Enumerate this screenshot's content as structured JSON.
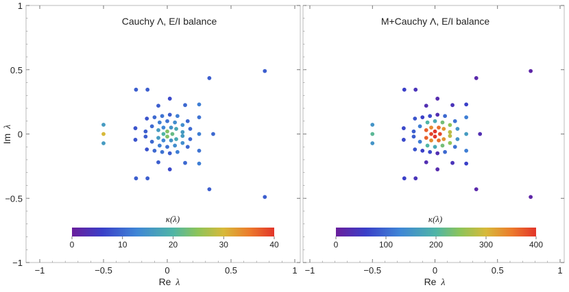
{
  "figure": {
    "y_axis_label": "Im",
    "x_axis_label": "Re",
    "lambda_symbol": "λ"
  },
  "chart_data": [
    {
      "type": "scatter",
      "title": "Cauchy Λ,  E/I balance",
      "xlabel": "Re λ",
      "ylabel": "Im λ",
      "xlim": [
        -1,
        1
      ],
      "ylim": [
        -1,
        1
      ],
      "x_ticks": [
        -1,
        -0.5,
        0,
        0.5,
        1
      ],
      "x_tick_labels": [
        "−1",
        "−0.5",
        "0",
        "0.5",
        "1"
      ],
      "y_ticks": [
        -1,
        -0.5,
        0,
        0.5,
        1
      ],
      "y_tick_labels": [
        "−1",
        "−0.5",
        "0",
        "0.5",
        "1"
      ],
      "colorbar": {
        "label": "κ(λ)",
        "min": 0,
        "max": 40,
        "ticks": [
          0,
          10,
          20,
          30,
          40
        ],
        "tick_labels": [
          "0",
          "10",
          "20",
          "30",
          "40"
        ]
      },
      "points": [
        {
          "x": -0.5,
          "y": 0,
          "k": 30
        },
        {
          "x": -0.5,
          "y": 0.072,
          "k": 16
        },
        {
          "x": -0.5,
          "y": -0.072,
          "k": 16
        },
        {
          "x": 0.765,
          "y": 0.49,
          "k": 9
        },
        {
          "x": 0.765,
          "y": -0.49,
          "k": 9
        },
        {
          "x": 0.33,
          "y": 0.435,
          "k": 9
        },
        {
          "x": 0.33,
          "y": -0.43,
          "k": 9
        },
        {
          "x": -0.245,
          "y": 0.345,
          "k": 9
        },
        {
          "x": -0.155,
          "y": 0.345,
          "k": 9
        },
        {
          "x": -0.245,
          "y": -0.345,
          "k": 9
        },
        {
          "x": -0.155,
          "y": -0.345,
          "k": 9
        },
        {
          "x": 0.02,
          "y": 0.275,
          "k": 7
        },
        {
          "x": 0.02,
          "y": -0.275,
          "k": 7
        },
        {
          "x": -0.07,
          "y": 0.22,
          "k": 9
        },
        {
          "x": -0.07,
          "y": -0.22,
          "k": 9
        },
        {
          "x": 0.14,
          "y": 0.225,
          "k": 10
        },
        {
          "x": 0.14,
          "y": -0.225,
          "k": 10
        },
        {
          "x": 0.25,
          "y": 0.23,
          "k": 12
        },
        {
          "x": 0.25,
          "y": -0.23,
          "k": 12
        },
        {
          "x": 0.36,
          "y": 0,
          "k": 10
        },
        {
          "x": 0.25,
          "y": 0.13,
          "k": 11
        },
        {
          "x": 0.25,
          "y": -0.13,
          "k": 11
        },
        {
          "x": 0.25,
          "y": 0,
          "k": 12
        },
        {
          "x": -0.25,
          "y": 0.045,
          "k": 8
        },
        {
          "x": -0.25,
          "y": -0.045,
          "k": 8
        },
        {
          "x": -0.16,
          "y": 0.12,
          "k": 8
        },
        {
          "x": -0.16,
          "y": -0.12,
          "k": 8
        },
        {
          "x": -0.17,
          "y": 0.02,
          "k": 9
        },
        {
          "x": -0.17,
          "y": -0.02,
          "k": 9
        },
        {
          "x": -0.1,
          "y": 0.13,
          "k": 10
        },
        {
          "x": -0.1,
          "y": -0.13,
          "k": 10
        },
        {
          "x": -0.04,
          "y": 0.14,
          "k": 11
        },
        {
          "x": -0.04,
          "y": -0.14,
          "k": 11
        },
        {
          "x": 0.02,
          "y": 0.15,
          "k": 9
        },
        {
          "x": 0.02,
          "y": -0.15,
          "k": 9
        },
        {
          "x": 0.08,
          "y": 0.14,
          "k": 12
        },
        {
          "x": 0.08,
          "y": -0.14,
          "k": 12
        },
        {
          "x": 0.16,
          "y": 0.1,
          "k": 10
        },
        {
          "x": 0.16,
          "y": -0.1,
          "k": 10
        },
        {
          "x": 0.18,
          "y": 0.04,
          "k": 10
        },
        {
          "x": 0.18,
          "y": -0.04,
          "k": 10
        },
        {
          "x": -0.12,
          "y": 0.06,
          "k": 10
        },
        {
          "x": -0.12,
          "y": -0.06,
          "k": 10
        },
        {
          "x": -0.06,
          "y": 0.09,
          "k": 12
        },
        {
          "x": -0.06,
          "y": -0.09,
          "k": 12
        },
        {
          "x": 0.0,
          "y": 0.1,
          "k": 11
        },
        {
          "x": 0.0,
          "y": -0.1,
          "k": 11
        },
        {
          "x": 0.06,
          "y": 0.09,
          "k": 14
        },
        {
          "x": 0.06,
          "y": -0.09,
          "k": 14
        },
        {
          "x": 0.12,
          "y": 0.07,
          "k": 14
        },
        {
          "x": 0.12,
          "y": -0.07,
          "k": 14
        },
        {
          "x": 0.12,
          "y": 0.015,
          "k": 16
        },
        {
          "x": 0.12,
          "y": -0.015,
          "k": 16
        },
        {
          "x": -0.07,
          "y": 0.03,
          "k": 16
        },
        {
          "x": -0.07,
          "y": -0.03,
          "k": 16
        },
        {
          "x": -0.03,
          "y": 0.05,
          "k": 13
        },
        {
          "x": -0.03,
          "y": -0.05,
          "k": 13
        },
        {
          "x": 0.03,
          "y": 0.05,
          "k": 15
        },
        {
          "x": 0.03,
          "y": -0.05,
          "k": 15
        },
        {
          "x": 0.07,
          "y": 0.04,
          "k": 18
        },
        {
          "x": 0.07,
          "y": -0.04,
          "k": 18
        },
        {
          "x": -0.03,
          "y": 0.0,
          "k": 20
        },
        {
          "x": 0.0,
          "y": 0.02,
          "k": 24
        },
        {
          "x": 0.0,
          "y": -0.02,
          "k": 24
        },
        {
          "x": 0.04,
          "y": 0.0,
          "k": 22
        }
      ]
    },
    {
      "type": "scatter",
      "title": "M+Cauchy Λ,  E/I balance",
      "xlabel": "Re λ",
      "ylabel": "Im λ",
      "xlim": [
        -1,
        1
      ],
      "ylim": [
        -1,
        1
      ],
      "x_ticks": [
        -1,
        -0.5,
        0,
        0.5,
        1
      ],
      "x_tick_labels": [
        "−1",
        "−0.5",
        "0",
        "0.5",
        "1"
      ],
      "y_ticks": [
        -1,
        -0.5,
        0,
        0.5,
        1
      ],
      "y_tick_labels": [
        "",
        "",
        "",
        "",
        ""
      ],
      "colorbar": {
        "label": "κ(λ)",
        "min": 0,
        "max": 400,
        "ticks": [
          0,
          100,
          200,
          300,
          400
        ],
        "tick_labels": [
          "0",
          "100",
          "200",
          "300",
          "400"
        ]
      },
      "points": [
        {
          "x": -0.5,
          "y": 0,
          "k": 210
        },
        {
          "x": -0.5,
          "y": 0.072,
          "k": 150
        },
        {
          "x": -0.5,
          "y": -0.072,
          "k": 150
        },
        {
          "x": 0.765,
          "y": 0.49,
          "k": 15
        },
        {
          "x": 0.765,
          "y": -0.49,
          "k": 15
        },
        {
          "x": 0.33,
          "y": 0.435,
          "k": 20
        },
        {
          "x": 0.33,
          "y": -0.43,
          "k": 20
        },
        {
          "x": -0.245,
          "y": 0.345,
          "k": 60
        },
        {
          "x": -0.155,
          "y": 0.345,
          "k": 40
        },
        {
          "x": -0.245,
          "y": -0.345,
          "k": 60
        },
        {
          "x": -0.155,
          "y": -0.345,
          "k": 40
        },
        {
          "x": 0.02,
          "y": 0.275,
          "k": 25
        },
        {
          "x": 0.02,
          "y": -0.275,
          "k": 25
        },
        {
          "x": -0.07,
          "y": 0.22,
          "k": 30
        },
        {
          "x": -0.07,
          "y": -0.22,
          "k": 30
        },
        {
          "x": 0.14,
          "y": 0.225,
          "k": 40
        },
        {
          "x": 0.14,
          "y": -0.225,
          "k": 40
        },
        {
          "x": 0.25,
          "y": 0.23,
          "k": 60
        },
        {
          "x": 0.25,
          "y": -0.23,
          "k": 60
        },
        {
          "x": 0.36,
          "y": 0,
          "k": 30
        },
        {
          "x": 0.25,
          "y": 0.13,
          "k": 120
        },
        {
          "x": 0.25,
          "y": -0.13,
          "k": 120
        },
        {
          "x": 0.25,
          "y": 0,
          "k": 160
        },
        {
          "x": -0.25,
          "y": 0.045,
          "k": 70
        },
        {
          "x": -0.25,
          "y": -0.045,
          "k": 70
        },
        {
          "x": -0.16,
          "y": 0.12,
          "k": 80
        },
        {
          "x": -0.16,
          "y": -0.12,
          "k": 80
        },
        {
          "x": -0.17,
          "y": 0.02,
          "k": 90
        },
        {
          "x": -0.17,
          "y": -0.02,
          "k": 90
        },
        {
          "x": -0.1,
          "y": 0.13,
          "k": 60
        },
        {
          "x": -0.1,
          "y": -0.13,
          "k": 60
        },
        {
          "x": -0.04,
          "y": 0.14,
          "k": 70
        },
        {
          "x": -0.04,
          "y": -0.14,
          "k": 70
        },
        {
          "x": 0.02,
          "y": 0.15,
          "k": 30
        },
        {
          "x": 0.02,
          "y": -0.15,
          "k": 30
        },
        {
          "x": 0.08,
          "y": 0.14,
          "k": 100
        },
        {
          "x": 0.08,
          "y": -0.14,
          "k": 100
        },
        {
          "x": 0.16,
          "y": 0.1,
          "k": 110
        },
        {
          "x": 0.16,
          "y": -0.1,
          "k": 110
        },
        {
          "x": 0.18,
          "y": 0.04,
          "k": 150
        },
        {
          "x": 0.18,
          "y": -0.04,
          "k": 150
        },
        {
          "x": -0.12,
          "y": 0.06,
          "k": 120
        },
        {
          "x": -0.12,
          "y": -0.06,
          "k": 120
        },
        {
          "x": -0.06,
          "y": 0.09,
          "k": 200
        },
        {
          "x": -0.06,
          "y": -0.09,
          "k": 200
        },
        {
          "x": 0.0,
          "y": 0.1,
          "k": 180
        },
        {
          "x": 0.0,
          "y": -0.1,
          "k": 180
        },
        {
          "x": 0.06,
          "y": 0.09,
          "k": 230
        },
        {
          "x": 0.06,
          "y": -0.09,
          "k": 230
        },
        {
          "x": 0.12,
          "y": 0.07,
          "k": 250
        },
        {
          "x": 0.12,
          "y": -0.07,
          "k": 250
        },
        {
          "x": 0.12,
          "y": 0.015,
          "k": 280
        },
        {
          "x": 0.12,
          "y": -0.015,
          "k": 280
        },
        {
          "x": -0.07,
          "y": 0.03,
          "k": 370
        },
        {
          "x": -0.07,
          "y": -0.03,
          "k": 370
        },
        {
          "x": -0.03,
          "y": 0.05,
          "k": 340
        },
        {
          "x": -0.03,
          "y": -0.05,
          "k": 340
        },
        {
          "x": 0.03,
          "y": 0.05,
          "k": 360
        },
        {
          "x": 0.03,
          "y": -0.05,
          "k": 360
        },
        {
          "x": 0.07,
          "y": 0.04,
          "k": 330
        },
        {
          "x": 0.07,
          "y": -0.04,
          "k": 330
        },
        {
          "x": -0.03,
          "y": 0.0,
          "k": 390
        },
        {
          "x": 0.0,
          "y": 0.02,
          "k": 400
        },
        {
          "x": 0.0,
          "y": -0.02,
          "k": 400
        },
        {
          "x": 0.04,
          "y": 0.0,
          "k": 385
        }
      ]
    }
  ]
}
